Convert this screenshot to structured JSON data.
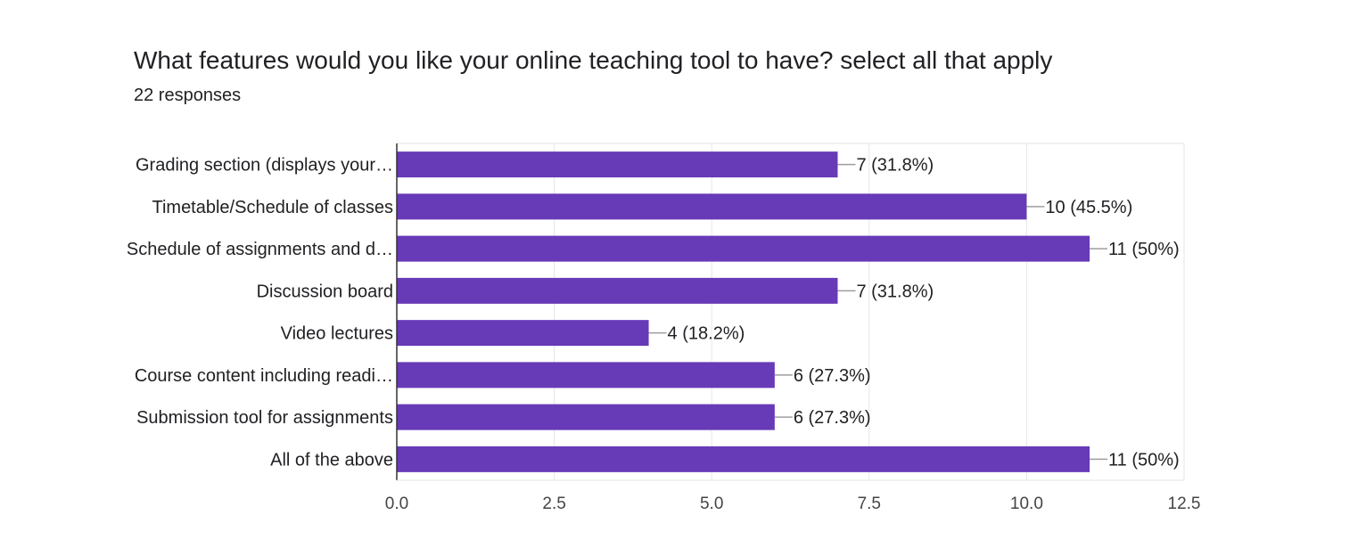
{
  "title": "What features would you like your online teaching tool to have?  select all that apply",
  "subtitle": "22 responses",
  "colors": {
    "bar": "#673ab7",
    "grid": "#e6e6e6",
    "axis": "#333333",
    "text": "#202124",
    "tick": "#444444",
    "leader": "#9e9e9e"
  },
  "chart_data": {
    "type": "bar",
    "orientation": "horizontal",
    "categories": [
      "Grading section (displays your…",
      "Timetable/Schedule of classes",
      "Schedule of assignments and d…",
      "Discussion board",
      "Video lectures",
      "Course content including readi…",
      "Submission tool for assignments",
      "All of the above"
    ],
    "values": [
      7,
      10,
      11,
      7,
      4,
      6,
      6,
      11
    ],
    "data_labels": [
      "7 (31.8%)",
      "10 (45.5%)",
      "11 (50%)",
      "7 (31.8%)",
      "4 (18.2%)",
      "6 (27.3%)",
      "6 (27.3%)",
      "11 (50%)"
    ],
    "xlim": [
      0,
      12.5
    ],
    "xticks": [
      0,
      2.5,
      5,
      7.5,
      10,
      12.5
    ],
    "xtick_labels": [
      "0.0",
      "2.5",
      "5.0",
      "7.5",
      "10.0",
      "12.5"
    ],
    "grid": true,
    "legend": "none"
  }
}
